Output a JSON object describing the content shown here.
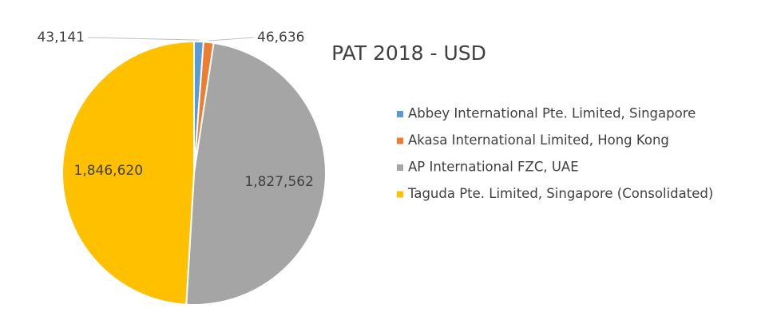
{
  "chart_data": {
    "type": "pie",
    "title": "PAT 2018 - USD",
    "categories": [
      "Abbey International Pte. Limited, Singapore",
      "Akasa International Limited, Hong Kong",
      "AP International FZC, UAE",
      "Taguda Pte. Limited, Singapore (Consolidated)"
    ],
    "values": [
      43141,
      46636,
      1827562,
      1846620
    ],
    "value_labels": [
      "43,141",
      "46,636",
      "1,827,562",
      "1,846,620"
    ],
    "colors": [
      "#5b9bd5",
      "#ed7d31",
      "#a5a5a5",
      "#ffc000"
    ],
    "legend": "right"
  }
}
